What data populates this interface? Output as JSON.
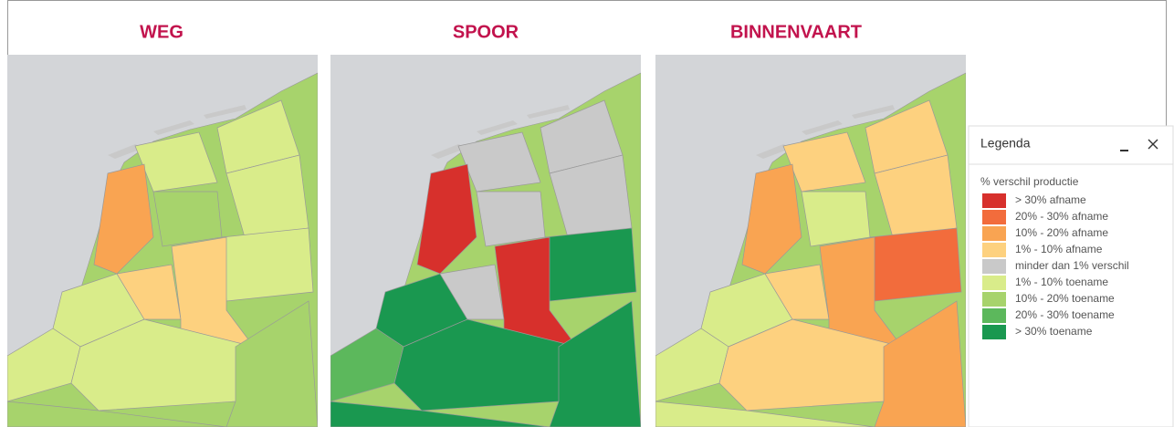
{
  "panels": [
    {
      "title": "WEG"
    },
    {
      "title": "SPOOR"
    },
    {
      "title": "BINNENVAART"
    }
  ],
  "legend": {
    "title": "Legenda",
    "subtitle": "% verschil productie",
    "items": [
      {
        "label": "> 30% afname",
        "color": "#d7302c"
      },
      {
        "label": "20% - 30% afname",
        "color": "#f26c3c"
      },
      {
        "label": "10% - 20% afname",
        "color": "#f9a452"
      },
      {
        "label": "1% - 10% afname",
        "color": "#fdd17f"
      },
      {
        "label": "minder dan 1% verschil",
        "color": "#c9c9c9"
      },
      {
        "label": "1% - 10% toename",
        "color": "#d9ec8a"
      },
      {
        "label": "10% - 20% toename",
        "color": "#a7d36c"
      },
      {
        "label": "20% - 30% toename",
        "color": "#5cb85c"
      },
      {
        "label": "> 30% toename",
        "color": "#1a9850"
      }
    ]
  }
}
